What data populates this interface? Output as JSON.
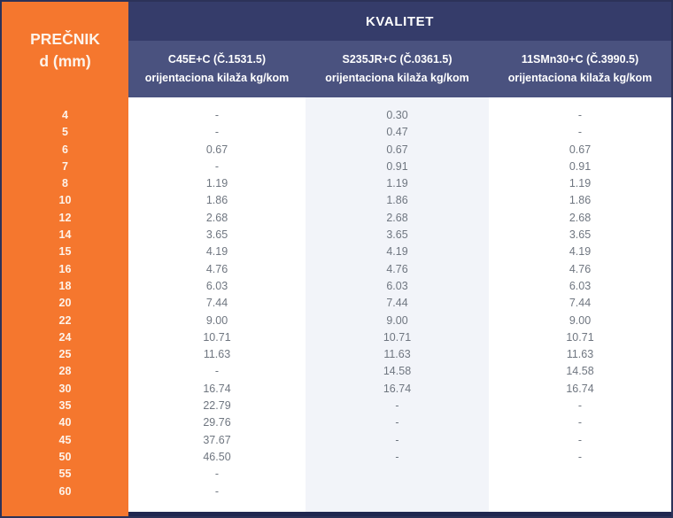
{
  "table": {
    "corner": {
      "line1": "PREČNIK",
      "line2": "d (mm)"
    },
    "group_header": "KVALITET",
    "columns": [
      {
        "name": "C45E+C (Č.1531.5)",
        "subtitle": "orijentaciona kilaža kg/kom"
      },
      {
        "name": "S235JR+C (Č.0361.5)",
        "subtitle": "orijentaciona kilaža kg/kom"
      },
      {
        "name": "11SMn30+C (Č.3990.5)",
        "subtitle": "orijentaciona kilaža kg/kom"
      }
    ],
    "rows": [
      {
        "d": "4",
        "values": [
          "-",
          "0.30",
          "-"
        ]
      },
      {
        "d": "5",
        "values": [
          "-",
          "0.47",
          "-"
        ]
      },
      {
        "d": "6",
        "values": [
          "0.67",
          "0.67",
          "0.67"
        ]
      },
      {
        "d": "7",
        "values": [
          "-",
          "0.91",
          "0.91"
        ]
      },
      {
        "d": "8",
        "values": [
          "1.19",
          "1.19",
          "1.19"
        ]
      },
      {
        "d": "10",
        "values": [
          "1.86",
          "1.86",
          "1.86"
        ]
      },
      {
        "d": "12",
        "values": [
          "2.68",
          "2.68",
          "2.68"
        ]
      },
      {
        "d": "14",
        "values": [
          "3.65",
          "3.65",
          "3.65"
        ]
      },
      {
        "d": "15",
        "values": [
          "4.19",
          "4.19",
          "4.19"
        ]
      },
      {
        "d": "16",
        "values": [
          "4.76",
          "4.76",
          "4.76"
        ]
      },
      {
        "d": "18",
        "values": [
          "6.03",
          "6.03",
          "6.03"
        ]
      },
      {
        "d": "20",
        "values": [
          "7.44",
          "7.44",
          "7.44"
        ]
      },
      {
        "d": "22",
        "values": [
          "9.00",
          "9.00",
          "9.00"
        ]
      },
      {
        "d": "24",
        "values": [
          "10.71",
          "10.71",
          "10.71"
        ]
      },
      {
        "d": "25",
        "values": [
          "11.63",
          "11.63",
          "11.63"
        ]
      },
      {
        "d": "28",
        "values": [
          "-",
          "14.58",
          "14.58"
        ]
      },
      {
        "d": "30",
        "values": [
          "16.74",
          "16.74",
          "16.74"
        ]
      },
      {
        "d": "35",
        "values": [
          "22.79",
          "-",
          "-"
        ]
      },
      {
        "d": "40",
        "values": [
          "29.76",
          "-",
          "-"
        ]
      },
      {
        "d": "45",
        "values": [
          "37.67",
          "-",
          "-"
        ]
      },
      {
        "d": "50",
        "values": [
          "46.50",
          "-",
          "-"
        ]
      },
      {
        "d": "55",
        "values": [
          "-",
          "",
          ""
        ]
      },
      {
        "d": "60",
        "values": [
          "-",
          "",
          ""
        ]
      }
    ]
  },
  "colors": {
    "accent_orange": "#f5772e",
    "header_dark_navy": "#353c6a",
    "header_light_navy": "#4a527f",
    "middle_column_stripe": "#f2f4f9",
    "value_text": "#6f7680",
    "frame_navy": "#2c3258",
    "bottom_bar_navy": "#202750"
  },
  "chart_data": {
    "type": "table",
    "title": "KVALITET",
    "row_header": "PREČNIK d (mm)",
    "categories": [
      4,
      5,
      6,
      7,
      8,
      10,
      12,
      14,
      15,
      16,
      18,
      20,
      22,
      24,
      25,
      28,
      30,
      35,
      40,
      45,
      50,
      55,
      60
    ],
    "unit": "orijentaciona kilaža kg/kom",
    "series": [
      {
        "name": "C45E+C (Č.1531.5)",
        "values": [
          null,
          null,
          0.67,
          null,
          1.19,
          1.86,
          2.68,
          3.65,
          4.19,
          4.76,
          6.03,
          7.44,
          9.0,
          10.71,
          11.63,
          null,
          16.74,
          22.79,
          29.76,
          37.67,
          46.5,
          null,
          null
        ]
      },
      {
        "name": "S235JR+C (Č.0361.5)",
        "values": [
          0.3,
          0.47,
          0.67,
          0.91,
          1.19,
          1.86,
          2.68,
          3.65,
          4.19,
          4.76,
          6.03,
          7.44,
          9.0,
          10.71,
          11.63,
          14.58,
          16.74,
          null,
          null,
          null,
          null,
          null,
          null
        ]
      },
      {
        "name": "11SMn30+C (Č.3990.5)",
        "values": [
          null,
          null,
          0.67,
          0.91,
          1.19,
          1.86,
          2.68,
          3.65,
          4.19,
          4.76,
          6.03,
          7.44,
          9.0,
          10.71,
          11.63,
          14.58,
          16.74,
          null,
          null,
          null,
          null,
          null,
          null
        ]
      }
    ]
  }
}
